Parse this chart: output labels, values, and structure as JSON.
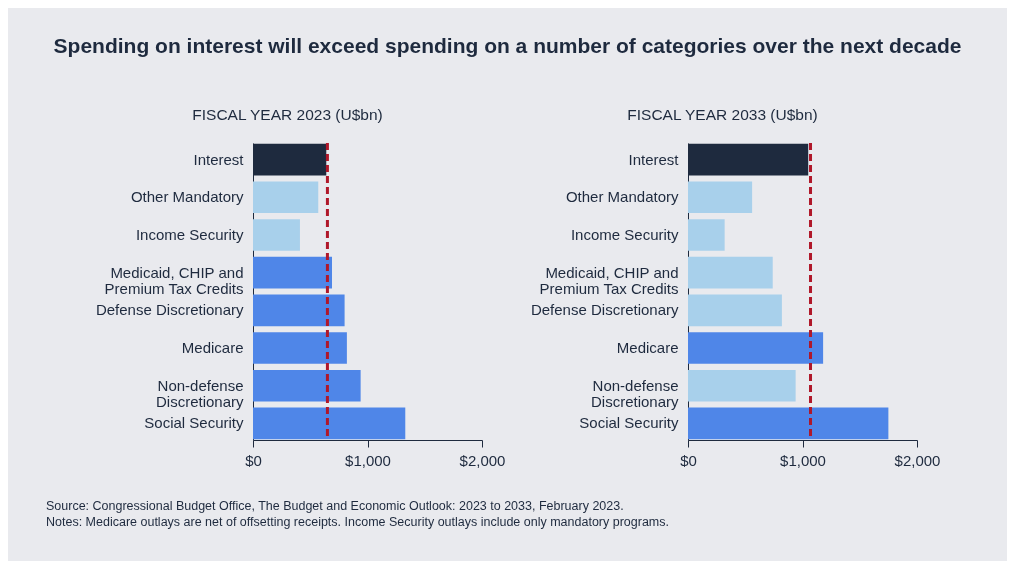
{
  "chart_data": [
    {
      "type": "bar",
      "orientation": "horizontal",
      "title": "Spending on interest will exceed spending on a number of categories over the next decade",
      "subtitle": "FISCAL YEAR 2023 (U$bn)",
      "categories": [
        "Interest",
        "Other Mandatory",
        "Income Security",
        "Medicaid, CHIP and Premium Tax Credits",
        "Defense Discretionary",
        "Medicare",
        "Non-defense Discretionary",
        "Social Security"
      ],
      "values": [
        640,
        570,
        410,
        690,
        800,
        820,
        940,
        1330
      ],
      "colors": [
        "#1e2a3e",
        "#a8d0eb",
        "#a8d0eb",
        "#4f86e8",
        "#4f86e8",
        "#4f86e8",
        "#4f86e8",
        "#4f86e8"
      ],
      "xlim": [
        0,
        2000
      ],
      "xticks": [
        {
          "value": 0,
          "label": "$0"
        },
        {
          "value": 1000,
          "label": "$1,000"
        },
        {
          "value": 2000,
          "label": "$2,000"
        }
      ],
      "ref_lines": [
        {
          "axis": "x",
          "value": 650,
          "color": "#b0182a",
          "line_style": "dashed"
        }
      ],
      "grid": false,
      "annotations": [
        "Source: Congressional Budget Office, The Budget and Economic Outlook: 2023 to 2033, February 2023.",
        "Notes: Medicare outlays are net of offsetting receipts. Income Security outlays include only mandatory programs."
      ]
    },
    {
      "type": "bar",
      "orientation": "horizontal",
      "subtitle": "FISCAL YEAR 2033 (U$bn)",
      "categories": [
        "Interest",
        "Other Mandatory",
        "Income Security",
        "Medicaid, CHIP and Premium Tax Credits",
        "Defense Discretionary",
        "Medicare",
        "Non-defense Discretionary",
        "Social Security"
      ],
      "values": [
        1050,
        560,
        320,
        740,
        820,
        1180,
        940,
        1750
      ],
      "colors": [
        "#1e2a3e",
        "#a8d0eb",
        "#a8d0eb",
        "#a8d0eb",
        "#a8d0eb",
        "#4f86e8",
        "#a8d0eb",
        "#4f86e8"
      ],
      "xlim": [
        0,
        2000
      ],
      "xticks": [
        {
          "value": 0,
          "label": "$0"
        },
        {
          "value": 1000,
          "label": "$1,000"
        },
        {
          "value": 2000,
          "label": "$2,000"
        }
      ],
      "ref_lines": [
        {
          "axis": "x",
          "value": 1070,
          "color": "#b0182a",
          "line_style": "dashed"
        }
      ],
      "grid": false
    }
  ]
}
